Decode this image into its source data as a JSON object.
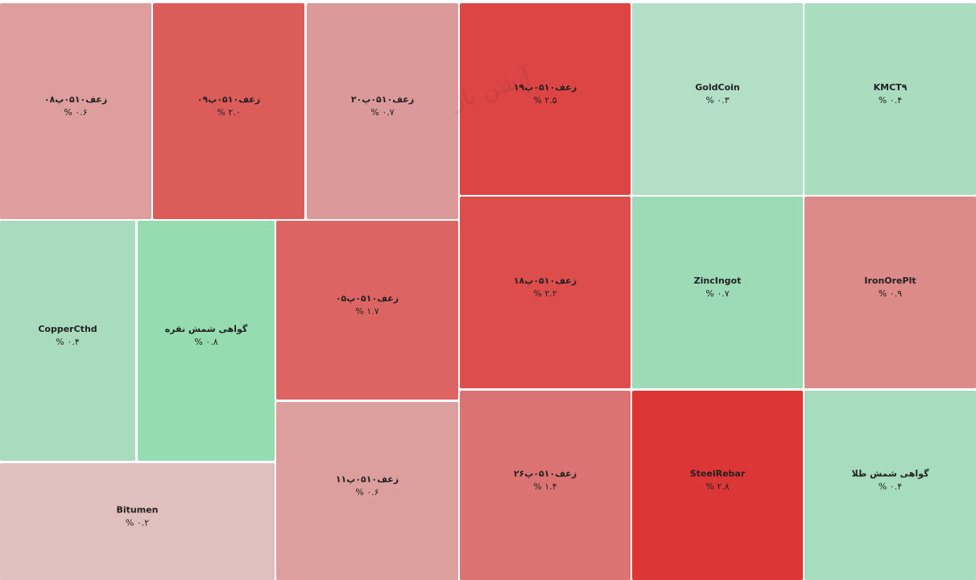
{
  "chart_data": {
    "type": "treemap",
    "watermark": "آپشن باز",
    "items": [
      {
        "name": "زعف۰۵۱۰پ۰۸",
        "value": 0.6,
        "value_label": "۰.۶ %",
        "color": "#df9e9e"
      },
      {
        "name": "زعف۰۵۱۰پ۰۹",
        "value": 2.0,
        "value_label": "۲.۰ %",
        "color": "#dc5c5a"
      },
      {
        "name": "زعف۰۵۱۰پ۲۰",
        "value": 0.7,
        "value_label": "۰.۷ %",
        "color": "#db9999"
      },
      {
        "name": "زعف۰۵۱۰پ۱۹",
        "value": 2.5,
        "value_label": "۲.۵ %",
        "color": "#dd4444"
      },
      {
        "name": "GoldCoin",
        "value": 0.3,
        "value_label": "۰.۳ %",
        "color": "#b3dfc6"
      },
      {
        "name": "KMCT۹",
        "value": 0.4,
        "value_label": "۰.۴ %",
        "color": "#aadcc0"
      },
      {
        "name": "CopperCthd",
        "value": 0.4,
        "value_label": "۰.۴ %",
        "color": "#a9dcbe"
      },
      {
        "name": "گواهی شمش نقره",
        "value": 0.8,
        "value_label": "۰.۸ %",
        "color": "#95ddb0"
      },
      {
        "name": "زعف۰۵۱۰پ۰۵",
        "value": 1.7,
        "value_label": "۱.۷ %",
        "color": "#dc6564"
      },
      {
        "name": "زعف۰۵۱۰پ۱۸",
        "value": 2.2,
        "value_label": "۲.۲ %",
        "color": "#dc4d4c"
      },
      {
        "name": "ZincIngot",
        "value": 0.7,
        "value_label": "۰.۷ %",
        "color": "#9ddbb6"
      },
      {
        "name": "IronOrePlt",
        "value": 0.9,
        "value_label": "۰.۹ %",
        "color": "#dc8b8a"
      },
      {
        "name": "Bitumen",
        "value": 0.2,
        "value_label": "۰.۲ %",
        "color": "#e0bfbf"
      },
      {
        "name": "زعف۰۵۱۰پ۱۱",
        "value": 0.6,
        "value_label": "۰.۶ %",
        "color": "#dd9e9e"
      },
      {
        "name": "زعف۰۵۱۰پ۲۶",
        "value": 1.4,
        "value_label": "۱.۴ %",
        "color": "#da7372"
      },
      {
        "name": "SteelRebar",
        "value": 2.8,
        "value_label": "۲.۸ %",
        "color": "#dd3636"
      },
      {
        "name": "گواهی شمش طلا",
        "value": 0.4,
        "value_label": "۰.۴ %",
        "color": "#a7dcbe"
      }
    ]
  }
}
